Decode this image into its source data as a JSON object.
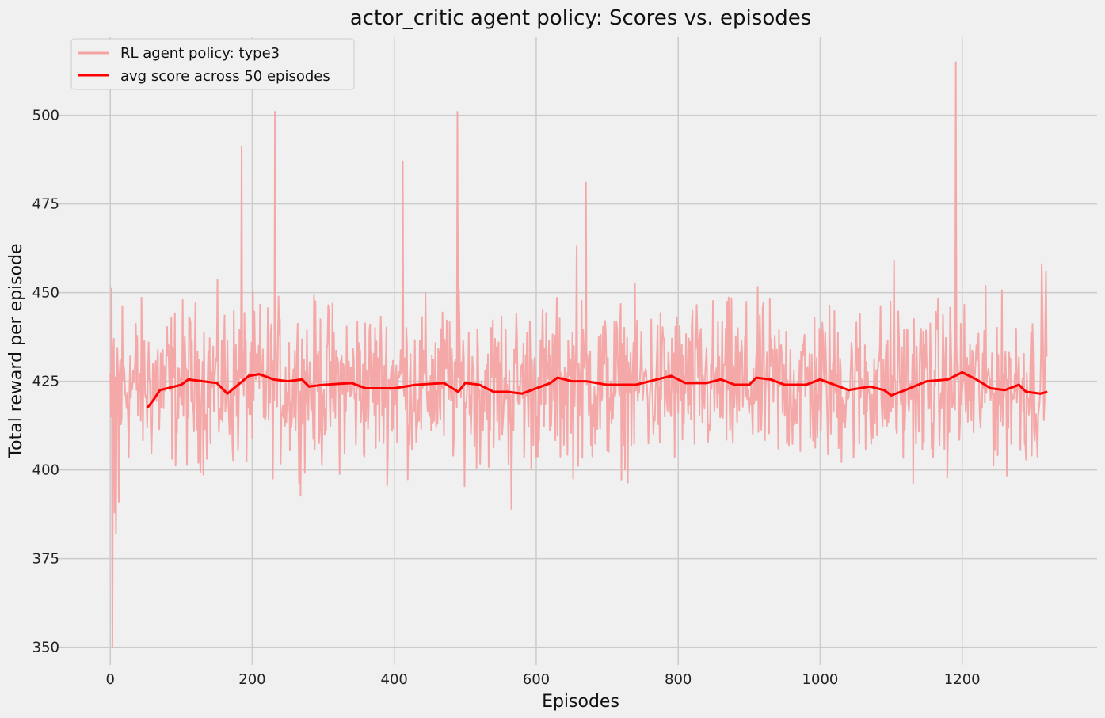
{
  "chart_data": {
    "type": "line",
    "title": "actor_critic agent policy: Scores vs. episodes",
    "xlabel": "Episodes",
    "ylabel": "Total reward per episode",
    "xlim": [
      -75,
      1390
    ],
    "ylim": [
      345,
      522
    ],
    "x_ticks": [
      0,
      200,
      400,
      600,
      800,
      1000,
      1200
    ],
    "y_ticks": [
      350,
      375,
      400,
      425,
      450,
      475,
      500
    ],
    "grid": true,
    "legend_position": "top-left",
    "episodes": 1320,
    "avg_window": 50,
    "series": [
      {
        "name": "RL agent policy: type3",
        "color": "#f4a3a3",
        "style": "raw",
        "spikes": [
          [
            1,
            415
          ],
          [
            3,
            350
          ],
          [
            6,
            388
          ],
          [
            8,
            382
          ],
          [
            12,
            391
          ],
          [
            185,
            491
          ],
          [
            232,
            501
          ],
          [
            412,
            487
          ],
          [
            489,
            501
          ],
          [
            565,
            389
          ],
          [
            657,
            463
          ],
          [
            670,
            481
          ],
          [
            1104,
            459
          ],
          [
            1191,
            515
          ],
          [
            1312,
            458
          ],
          [
            1318,
            456
          ]
        ]
      },
      {
        "name": "avg score across 50 episodes",
        "color": "#ff0000",
        "style": "moving_average",
        "points": [
          [
            52,
            417.5
          ],
          [
            60,
            419.5
          ],
          [
            70,
            422.5
          ],
          [
            80,
            423
          ],
          [
            100,
            424
          ],
          [
            110,
            425.5
          ],
          [
            130,
            425
          ],
          [
            150,
            424.5
          ],
          [
            165,
            421.5
          ],
          [
            180,
            424
          ],
          [
            195,
            426.5
          ],
          [
            210,
            427
          ],
          [
            230,
            425.5
          ],
          [
            250,
            425
          ],
          [
            270,
            425.5
          ],
          [
            280,
            423.5
          ],
          [
            300,
            424
          ],
          [
            340,
            424.5
          ],
          [
            360,
            423
          ],
          [
            400,
            423
          ],
          [
            430,
            424
          ],
          [
            470,
            424.5
          ],
          [
            490,
            422
          ],
          [
            500,
            424.5
          ],
          [
            520,
            424
          ],
          [
            540,
            422
          ],
          [
            560,
            422
          ],
          [
            580,
            421.5
          ],
          [
            600,
            423
          ],
          [
            620,
            424.5
          ],
          [
            630,
            426
          ],
          [
            650,
            425
          ],
          [
            670,
            425
          ],
          [
            700,
            424
          ],
          [
            740,
            424
          ],
          [
            760,
            425
          ],
          [
            790,
            426.5
          ],
          [
            810,
            424.5
          ],
          [
            840,
            424.5
          ],
          [
            860,
            425.5
          ],
          [
            880,
            424
          ],
          [
            900,
            424
          ],
          [
            910,
            426
          ],
          [
            930,
            425.5
          ],
          [
            950,
            424
          ],
          [
            980,
            424
          ],
          [
            1000,
            425.5
          ],
          [
            1020,
            424
          ],
          [
            1040,
            422.5
          ],
          [
            1070,
            423.5
          ],
          [
            1090,
            422.5
          ],
          [
            1100,
            421
          ],
          [
            1120,
            422.5
          ],
          [
            1150,
            425
          ],
          [
            1180,
            425.5
          ],
          [
            1200,
            427.5
          ],
          [
            1220,
            425.5
          ],
          [
            1240,
            423
          ],
          [
            1260,
            422.5
          ],
          [
            1280,
            424
          ],
          [
            1290,
            422
          ],
          [
            1310,
            421.5
          ],
          [
            1320,
            422
          ]
        ]
      }
    ]
  }
}
